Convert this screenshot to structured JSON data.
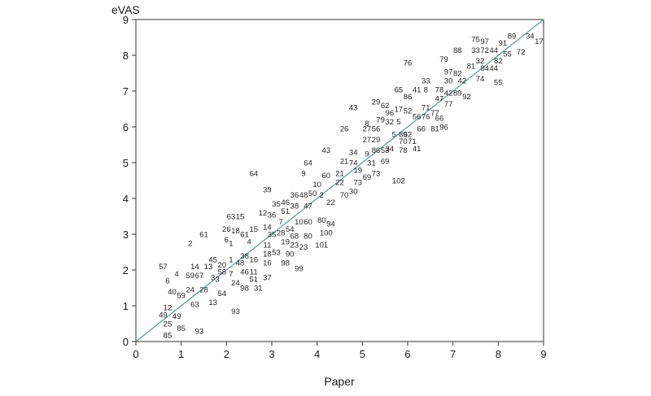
{
  "chart_data": {
    "type": "scatter",
    "marker": "text-label",
    "title": "",
    "xlabel": "Paper",
    "ylabel": "eVAS",
    "xlim": [
      0,
      9
    ],
    "ylim": [
      0,
      9
    ],
    "xticks": [
      "0",
      "1",
      "2",
      "3",
      "4",
      "5",
      "6",
      "7",
      "8",
      "9"
    ],
    "yticks": [
      "0",
      "1",
      "2",
      "3",
      "4",
      "5",
      "6",
      "7",
      "8",
      "9"
    ],
    "grid": false,
    "legend": "none",
    "reference_line": {
      "x": [
        0,
        9
      ],
      "y": [
        0,
        9
      ]
    },
    "colors": {
      "reference_line": "#4f9a9e",
      "frame": "#333333",
      "text": "#222222"
    },
    "points": [
      {
        "label": "57",
        "x": 0.6,
        "y": 2.1
      },
      {
        "label": "4",
        "x": 0.9,
        "y": 1.9
      },
      {
        "label": "6",
        "x": 0.7,
        "y": 1.7
      },
      {
        "label": "40",
        "x": 0.8,
        "y": 1.4
      },
      {
        "label": "59",
        "x": 1.0,
        "y": 1.3
      },
      {
        "label": "12",
        "x": 0.7,
        "y": 0.95
      },
      {
        "label": "49",
        "x": 0.6,
        "y": 0.75
      },
      {
        "label": "49",
        "x": 0.9,
        "y": 0.72
      },
      {
        "label": "25",
        "x": 0.7,
        "y": 0.5
      },
      {
        "label": "85",
        "x": 0.7,
        "y": 0.18
      },
      {
        "label": "85",
        "x": 1.0,
        "y": 0.38
      },
      {
        "label": "93",
        "x": 1.4,
        "y": 0.3
      },
      {
        "label": "2",
        "x": 1.2,
        "y": 2.75
      },
      {
        "label": "61",
        "x": 1.5,
        "y": 3.0
      },
      {
        "label": "14",
        "x": 1.3,
        "y": 2.1
      },
      {
        "label": "13",
        "x": 1.6,
        "y": 2.1
      },
      {
        "label": "59",
        "x": 1.2,
        "y": 1.85
      },
      {
        "label": "67",
        "x": 1.4,
        "y": 1.85
      },
      {
        "label": "24",
        "x": 1.2,
        "y": 1.45
      },
      {
        "label": "28",
        "x": 1.5,
        "y": 1.45
      },
      {
        "label": "63",
        "x": 1.3,
        "y": 1.05
      },
      {
        "label": "13",
        "x": 1.7,
        "y": 1.1
      },
      {
        "label": "54",
        "x": 1.9,
        "y": 1.35
      },
      {
        "label": "45",
        "x": 1.7,
        "y": 2.3
      },
      {
        "label": "20",
        "x": 1.9,
        "y": 2.15
      },
      {
        "label": "3",
        "x": 1.7,
        "y": 1.8
      },
      {
        "label": "3",
        "x": 1.8,
        "y": 1.75
      },
      {
        "label": "58",
        "x": 1.9,
        "y": 1.95
      },
      {
        "label": "7",
        "x": 2.1,
        "y": 1.9
      },
      {
        "label": "24",
        "x": 2.2,
        "y": 1.65
      },
      {
        "label": "93",
        "x": 2.2,
        "y": 0.85
      },
      {
        "label": "63",
        "x": 2.1,
        "y": 3.5
      },
      {
        "label": "15",
        "x": 2.3,
        "y": 3.5
      },
      {
        "label": "26",
        "x": 2.0,
        "y": 3.15
      },
      {
        "label": "18",
        "x": 2.2,
        "y": 3.1
      },
      {
        "label": "61",
        "x": 2.4,
        "y": 3.0
      },
      {
        "label": "6",
        "x": 2.0,
        "y": 2.85
      },
      {
        "label": "1",
        "x": 2.1,
        "y": 2.75
      },
      {
        "label": "4",
        "x": 2.5,
        "y": 2.8
      },
      {
        "label": "1",
        "x": 2.1,
        "y": 2.3
      },
      {
        "label": "38",
        "x": 2.4,
        "y": 2.4
      },
      {
        "label": "48",
        "x": 2.3,
        "y": 2.2
      },
      {
        "label": "16",
        "x": 2.6,
        "y": 2.3
      },
      {
        "label": "46",
        "x": 2.4,
        "y": 1.95
      },
      {
        "label": "11",
        "x": 2.6,
        "y": 1.95
      },
      {
        "label": "51",
        "x": 2.6,
        "y": 1.75
      },
      {
        "label": "98",
        "x": 2.4,
        "y": 1.5
      },
      {
        "label": "31",
        "x": 2.7,
        "y": 1.5
      },
      {
        "label": "64",
        "x": 2.6,
        "y": 4.7
      },
      {
        "label": "39",
        "x": 2.9,
        "y": 4.25
      },
      {
        "label": "12",
        "x": 2.8,
        "y": 3.6
      },
      {
        "label": "36",
        "x": 3.0,
        "y": 3.55
      },
      {
        "label": "15",
        "x": 2.6,
        "y": 3.15
      },
      {
        "label": "14",
        "x": 2.9,
        "y": 3.2
      },
      {
        "label": "7",
        "x": 3.2,
        "y": 3.35
      },
      {
        "label": "35",
        "x": 3.0,
        "y": 3.0
      },
      {
        "label": "28",
        "x": 3.2,
        "y": 3.05
      },
      {
        "label": "11",
        "x": 2.9,
        "y": 2.7
      },
      {
        "label": "18",
        "x": 2.9,
        "y": 2.45
      },
      {
        "label": "53",
        "x": 3.1,
        "y": 2.5
      },
      {
        "label": "16",
        "x": 2.9,
        "y": 2.2
      },
      {
        "label": "37",
        "x": 2.9,
        "y": 1.8
      },
      {
        "label": "35",
        "x": 3.1,
        "y": 3.85
      },
      {
        "label": "46",
        "x": 3.3,
        "y": 3.9
      },
      {
        "label": "36",
        "x": 3.5,
        "y": 4.1
      },
      {
        "label": "51",
        "x": 3.3,
        "y": 3.65
      },
      {
        "label": "38",
        "x": 3.5,
        "y": 3.8
      },
      {
        "label": "48",
        "x": 3.7,
        "y": 4.1
      },
      {
        "label": "47",
        "x": 3.8,
        "y": 3.8
      },
      {
        "label": "54",
        "x": 3.4,
        "y": 3.15
      },
      {
        "label": "10",
        "x": 3.6,
        "y": 3.35
      },
      {
        "label": "60",
        "x": 3.8,
        "y": 3.35
      },
      {
        "label": "68",
        "x": 3.5,
        "y": 2.95
      },
      {
        "label": "19",
        "x": 3.3,
        "y": 2.8
      },
      {
        "label": "80",
        "x": 3.8,
        "y": 2.95
      },
      {
        "label": "23",
        "x": 3.5,
        "y": 2.7
      },
      {
        "label": "23",
        "x": 3.7,
        "y": 2.65
      },
      {
        "label": "90",
        "x": 3.4,
        "y": 2.45
      },
      {
        "label": "98",
        "x": 3.3,
        "y": 2.2
      },
      {
        "label": "99",
        "x": 3.6,
        "y": 2.05
      },
      {
        "label": "64",
        "x": 3.8,
        "y": 5.0
      },
      {
        "label": "9",
        "x": 3.7,
        "y": 4.7
      },
      {
        "label": "10",
        "x": 4.0,
        "y": 4.4
      },
      {
        "label": "60",
        "x": 4.2,
        "y": 4.65
      },
      {
        "label": "50",
        "x": 3.9,
        "y": 4.15
      },
      {
        "label": "2",
        "x": 4.1,
        "y": 4.1
      },
      {
        "label": "22",
        "x": 4.3,
        "y": 3.9
      },
      {
        "label": "80",
        "x": 4.1,
        "y": 3.4
      },
      {
        "label": "94",
        "x": 4.3,
        "y": 3.3
      },
      {
        "label": "100",
        "x": 4.2,
        "y": 3.05
      },
      {
        "label": "101",
        "x": 4.1,
        "y": 2.7
      },
      {
        "label": "43",
        "x": 4.2,
        "y": 5.35
      },
      {
        "label": "21",
        "x": 4.5,
        "y": 4.7
      },
      {
        "label": "22",
        "x": 4.5,
        "y": 4.45
      },
      {
        "label": "70",
        "x": 4.6,
        "y": 4.1
      },
      {
        "label": "30",
        "x": 4.8,
        "y": 4.2
      },
      {
        "label": "43",
        "x": 4.8,
        "y": 6.55
      },
      {
        "label": "26",
        "x": 4.6,
        "y": 5.95
      },
      {
        "label": "34",
        "x": 4.8,
        "y": 5.3
      },
      {
        "label": "21",
        "x": 4.6,
        "y": 5.05
      },
      {
        "label": "74",
        "x": 4.8,
        "y": 5.0
      },
      {
        "label": "19",
        "x": 4.9,
        "y": 4.8
      },
      {
        "label": "73",
        "x": 4.9,
        "y": 4.45
      },
      {
        "label": "69",
        "x": 5.1,
        "y": 4.6
      },
      {
        "label": "73",
        "x": 5.3,
        "y": 4.7
      },
      {
        "label": "29",
        "x": 5.3,
        "y": 6.7
      },
      {
        "label": "62",
        "x": 5.5,
        "y": 6.6
      },
      {
        "label": "79",
        "x": 5.4,
        "y": 6.2
      },
      {
        "label": "32",
        "x": 5.6,
        "y": 6.15
      },
      {
        "label": "5",
        "x": 5.8,
        "y": 6.15
      },
      {
        "label": "8",
        "x": 5.1,
        "y": 6.1
      },
      {
        "label": "27",
        "x": 5.1,
        "y": 5.95
      },
      {
        "label": "56",
        "x": 5.3,
        "y": 5.95
      },
      {
        "label": "27",
        "x": 5.1,
        "y": 5.65
      },
      {
        "label": "29",
        "x": 5.3,
        "y": 5.65
      },
      {
        "label": "34",
        "x": 5.6,
        "y": 5.4
      },
      {
        "label": "9",
        "x": 5.1,
        "y": 5.25
      },
      {
        "label": "86",
        "x": 5.3,
        "y": 5.35
      },
      {
        "label": "53",
        "x": 5.5,
        "y": 5.35
      },
      {
        "label": "31",
        "x": 5.2,
        "y": 5.0
      },
      {
        "label": "69",
        "x": 5.5,
        "y": 5.05
      },
      {
        "label": "96",
        "x": 5.6,
        "y": 6.4
      },
      {
        "label": "17",
        "x": 5.8,
        "y": 6.5
      },
      {
        "label": "65",
        "x": 5.8,
        "y": 7.05
      },
      {
        "label": "86",
        "x": 6.0,
        "y": 6.85
      },
      {
        "label": "41",
        "x": 6.2,
        "y": 7.05
      },
      {
        "label": "8",
        "x": 6.4,
        "y": 7.05
      },
      {
        "label": "33",
        "x": 6.4,
        "y": 7.3
      },
      {
        "label": "76",
        "x": 6.0,
        "y": 7.8
      },
      {
        "label": "52",
        "x": 6.0,
        "y": 6.45
      },
      {
        "label": "56",
        "x": 6.2,
        "y": 6.3
      },
      {
        "label": "76",
        "x": 6.4,
        "y": 6.3
      },
      {
        "label": "71",
        "x": 6.4,
        "y": 6.55
      },
      {
        "label": "77",
        "x": 6.6,
        "y": 6.4
      },
      {
        "label": "5",
        "x": 5.7,
        "y": 5.8
      },
      {
        "label": "89",
        "x": 5.9,
        "y": 5.8
      },
      {
        "label": "62",
        "x": 6.0,
        "y": 5.8
      },
      {
        "label": "70",
        "x": 5.9,
        "y": 5.6
      },
      {
        "label": "71",
        "x": 6.1,
        "y": 5.6
      },
      {
        "label": "78",
        "x": 5.9,
        "y": 5.35
      },
      {
        "label": "41",
        "x": 6.2,
        "y": 5.4
      },
      {
        "label": "66",
        "x": 6.3,
        "y": 5.95
      },
      {
        "label": "102",
        "x": 5.8,
        "y": 4.5
      },
      {
        "label": "79",
        "x": 6.8,
        "y": 7.9
      },
      {
        "label": "88",
        "x": 7.1,
        "y": 8.15
      },
      {
        "label": "75",
        "x": 7.5,
        "y": 8.45
      },
      {
        "label": "97",
        "x": 7.7,
        "y": 8.4
      },
      {
        "label": "33",
        "x": 7.5,
        "y": 8.15
      },
      {
        "label": "72",
        "x": 7.7,
        "y": 8.15
      },
      {
        "label": "44",
        "x": 7.9,
        "y": 8.15
      },
      {
        "label": "89",
        "x": 8.3,
        "y": 8.55
      },
      {
        "label": "34",
        "x": 8.7,
        "y": 8.55
      },
      {
        "label": "17",
        "x": 8.9,
        "y": 8.4
      },
      {
        "label": "91",
        "x": 8.1,
        "y": 8.35
      },
      {
        "label": "72",
        "x": 8.5,
        "y": 8.1
      },
      {
        "label": "55",
        "x": 8.2,
        "y": 8.05
      },
      {
        "label": "82",
        "x": 8.0,
        "y": 7.85
      },
      {
        "label": "32",
        "x": 7.6,
        "y": 7.85
      },
      {
        "label": "81",
        "x": 7.4,
        "y": 7.7
      },
      {
        "label": "84",
        "x": 7.7,
        "y": 7.65
      },
      {
        "label": "44",
        "x": 7.9,
        "y": 7.65
      },
      {
        "label": "97",
        "x": 6.9,
        "y": 7.55
      },
      {
        "label": "82",
        "x": 7.1,
        "y": 7.5
      },
      {
        "label": "30",
        "x": 6.9,
        "y": 7.3
      },
      {
        "label": "42",
        "x": 7.2,
        "y": 7.3
      },
      {
        "label": "74",
        "x": 7.6,
        "y": 7.35
      },
      {
        "label": "55",
        "x": 8.0,
        "y": 7.25
      },
      {
        "label": "78",
        "x": 6.7,
        "y": 7.05
      },
      {
        "label": "42",
        "x": 6.9,
        "y": 6.95
      },
      {
        "label": "89",
        "x": 7.1,
        "y": 6.95
      },
      {
        "label": "92",
        "x": 7.3,
        "y": 6.85
      },
      {
        "label": "47",
        "x": 6.7,
        "y": 6.8
      },
      {
        "label": "77",
        "x": 6.9,
        "y": 6.65
      },
      {
        "label": "66",
        "x": 6.7,
        "y": 6.25
      },
      {
        "label": "81",
        "x": 6.6,
        "y": 5.95
      },
      {
        "label": "96",
        "x": 6.8,
        "y": 6.0
      }
    ]
  }
}
